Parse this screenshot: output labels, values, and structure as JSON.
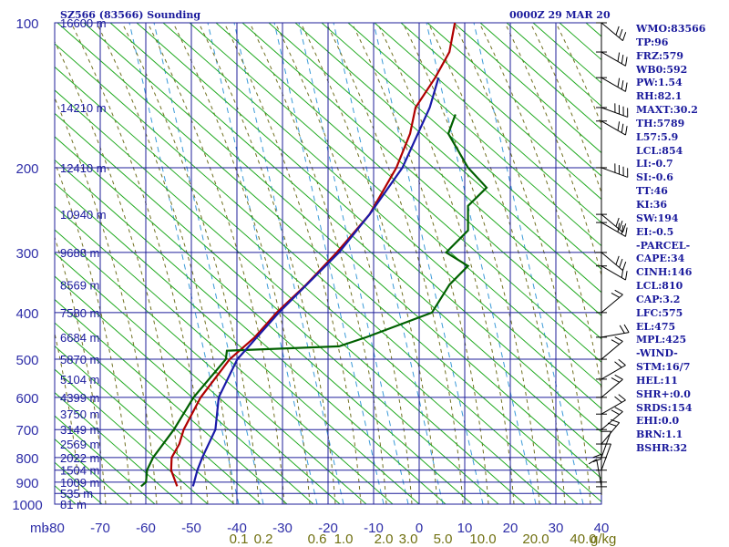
{
  "header": {
    "station": "SZ566 (83566) Sounding",
    "valid_time": "0000Z 29 MAR 20"
  },
  "indices": [
    "WMO:83566",
    "TP:96",
    "FRZ:579",
    "WB0:592",
    "PW:1.54",
    "RH:82.1",
    "MAXT:30.2",
    "TH:5789",
    "L57:5.9",
    "LCL:854",
    "LI:-0.7",
    "SI:-0.6",
    "TT:46",
    "KI:36",
    "SW:194",
    "EI:-0.5",
    "-PARCEL-",
    "CAPE:34",
    "CINH:146",
    "LCL:810",
    "CAP:3.2",
    "LFC:575",
    "EL:475",
    "MPL:425",
    "-WIND-",
    "STM:16/7",
    "HEL:11",
    "SHR+:0.0",
    "SRDS:154",
    "EHI:0.0",
    "BRN:1.1",
    "BSHR:32"
  ],
  "chart_data": {
    "type": "line",
    "title": "SZ566 (83566) Sounding",
    "xlabel": "",
    "ylabel": "",
    "xlim": [
      -80,
      40
    ],
    "ylim": [
      1000,
      100
    ],
    "y_log": true,
    "grid": true,
    "y_ticks": [
      100,
      200,
      300,
      400,
      500,
      600,
      700,
      800,
      900,
      1000
    ],
    "x_ticks": [
      -80,
      -70,
      -60,
      -50,
      -40,
      -30,
      -20,
      -10,
      0,
      10,
      20,
      30,
      40
    ],
    "pressure_axis_label": "mb",
    "height_labels": [
      {
        "p": 100,
        "label": "16600 m"
      },
      {
        "p": 150,
        "label": "14210 m"
      },
      {
        "p": 200,
        "label": "12410 m"
      },
      {
        "p": 250,
        "label": "10940 m"
      },
      {
        "p": 300,
        "label": "9688 m"
      },
      {
        "p": 350,
        "label": "8569 m"
      },
      {
        "p": 400,
        "label": "7580 m"
      },
      {
        "p": 450,
        "label": "6684 m"
      },
      {
        "p": 500,
        "label": "5870 m"
      },
      {
        "p": 550,
        "label": "5104 m"
      },
      {
        "p": 600,
        "label": "4399 m"
      },
      {
        "p": 650,
        "label": "3750 m"
      },
      {
        "p": 700,
        "label": "3149 m"
      },
      {
        "p": 750,
        "label": "2569 m"
      },
      {
        "p": 800,
        "label": "2022 m"
      },
      {
        "p": 850,
        "label": "1504 m"
      },
      {
        "p": 900,
        "label": "1009 m"
      },
      {
        "p": 950,
        "label": "535 m"
      },
      {
        "p": 1000,
        "label": "81 m"
      }
    ],
    "mixing_ratio_labels": [
      {
        "w": 0.1,
        "label": "0.1"
      },
      {
        "w": 0.2,
        "label": "0.2"
      },
      {
        "w": 0.6,
        "label": "0.6"
      },
      {
        "w": 1.0,
        "label": "1.0"
      },
      {
        "w": 2.0,
        "label": "2.0"
      },
      {
        "w": 3.0,
        "label": "3.0"
      },
      {
        "w": 5.0,
        "label": "5.0"
      },
      {
        "w": 10.0,
        "label": "10.0"
      },
      {
        "w": 20.0,
        "label": "20.0"
      },
      {
        "w": 40.0,
        "label": "40.0"
      }
    ],
    "mixing_ratio_unit": "g/kg",
    "series": [
      {
        "role": "temperature",
        "color": "#b00000",
        "points": [
          [
            918,
            22.4
          ],
          [
            850,
            21.3
          ],
          [
            800,
            21.4
          ],
          [
            750,
            22.8
          ],
          [
            700,
            23.6
          ],
          [
            600,
            26.7
          ],
          [
            500,
            32.0
          ],
          [
            450,
            36.6
          ],
          [
            400,
            40.6
          ],
          [
            350,
            46.0
          ],
          [
            300,
            51.6
          ],
          [
            250,
            57.6
          ],
          [
            200,
            62.5
          ],
          [
            170,
            65.0
          ],
          [
            150,
            66.0
          ],
          [
            130,
            69.6
          ],
          [
            115,
            72.2
          ],
          [
            100,
            73.2
          ]
        ]
      },
      {
        "role": "dewpoint",
        "color": "#006000",
        "points": [
          [
            918,
            15.8
          ],
          [
            900,
            16.7
          ],
          [
            850,
            16.9
          ],
          [
            800,
            18.0
          ],
          [
            700,
            21.8
          ],
          [
            600,
            25.4
          ],
          [
            500,
            31.3
          ],
          [
            480,
            31.5
          ],
          [
            470,
            52.0
          ],
          [
            450,
            57.0
          ],
          [
            400,
            69.0
          ],
          [
            350,
            72.2
          ],
          [
            320,
            75.6
          ],
          [
            300,
            71.6
          ],
          [
            270,
            75.6
          ],
          [
            240,
            75.6
          ],
          [
            220,
            79.0
          ],
          [
            200,
            75.6
          ],
          [
            170,
            72.0
          ],
          [
            155,
            73.3
          ]
        ]
      },
      {
        "role": "parcel",
        "color": "#1a1aa8",
        "points": [
          [
            918,
            25.3
          ],
          [
            850,
            26.1
          ],
          [
            800,
            27.0
          ],
          [
            700,
            29.4
          ],
          [
            600,
            30.0
          ],
          [
            500,
            33.4
          ],
          [
            400,
            41.0
          ],
          [
            300,
            52.0
          ],
          [
            250,
            57.6
          ],
          [
            200,
            63.6
          ],
          [
            150,
            68.6
          ],
          [
            130,
            70.2
          ]
        ]
      }
    ],
    "wind_barbs": [
      {
        "p": 100,
        "dir": 310,
        "speed": 25
      },
      {
        "p": 115,
        "dir": 300,
        "speed": 25
      },
      {
        "p": 130,
        "dir": 300,
        "speed": 30
      },
      {
        "p": 150,
        "dir": 290,
        "speed": 35
      },
      {
        "p": 160,
        "dir": 300,
        "speed": 30
      },
      {
        "p": 200,
        "dir": 290,
        "speed": 50
      },
      {
        "p": 250,
        "dir": 310,
        "speed": 30
      },
      {
        "p": 260,
        "dir": 300,
        "speed": 25
      },
      {
        "p": 300,
        "dir": 310,
        "speed": 25
      },
      {
        "p": 320,
        "dir": 300,
        "speed": 20
      },
      {
        "p": 400,
        "dir": 230,
        "speed": 20
      },
      {
        "p": 450,
        "dir": 260,
        "speed": 20
      },
      {
        "p": 500,
        "dir": 230,
        "speed": 20
      },
      {
        "p": 550,
        "dir": 240,
        "speed": 20
      },
      {
        "p": 600,
        "dir": 230,
        "speed": 20
      },
      {
        "p": 650,
        "dir": 240,
        "speed": 15
      },
      {
        "p": 700,
        "dir": 230,
        "speed": 15
      },
      {
        "p": 750,
        "dir": 220,
        "speed": 15
      },
      {
        "p": 800,
        "dir": 200,
        "speed": 10
      },
      {
        "p": 850,
        "dir": 200,
        "speed": 10
      },
      {
        "p": 900,
        "dir": 180,
        "speed": 15
      },
      {
        "p": 920,
        "dir": 170,
        "speed": 10
      }
    ],
    "colors": {
      "grid": "#1f1f9a",
      "dry_adiabat": "#22aa22",
      "moist_adiabat": "#707020",
      "mixing_ratio": "#3a9ad8",
      "barb": "#000000"
    }
  }
}
